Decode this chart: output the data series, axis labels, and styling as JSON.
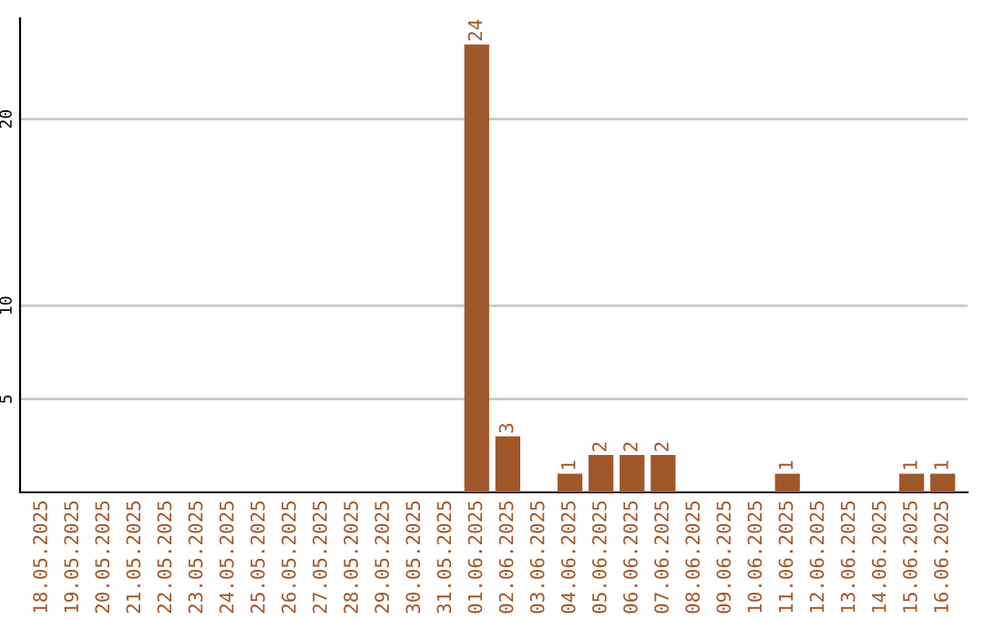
{
  "chart_data": {
    "type": "bar",
    "categories": [
      "18.05.2025",
      "19.05.2025",
      "20.05.2025",
      "21.05.2025",
      "22.05.2025",
      "23.05.2025",
      "24.05.2025",
      "25.05.2025",
      "26.05.2025",
      "27.05.2025",
      "28.05.2025",
      "29.05.2025",
      "30.05.2025",
      "31.05.2025",
      "01.06.2025",
      "02.06.2025",
      "03.06.2025",
      "04.06.2025",
      "05.06.2025",
      "06.06.2025",
      "07.06.2025",
      "08.06.2025",
      "09.06.2025",
      "10.06.2025",
      "11.06.2025",
      "12.06.2025",
      "13.06.2025",
      "14.06.2025",
      "15.06.2025",
      "16.06.2025"
    ],
    "values": [
      0,
      0,
      0,
      0,
      0,
      0,
      0,
      0,
      0,
      0,
      0,
      0,
      0,
      0,
      24,
      3,
      0,
      1,
      2,
      2,
      2,
      0,
      0,
      0,
      1,
      0,
      0,
      0,
      1,
      1
    ],
    "value_labels": [
      null,
      null,
      null,
      null,
      null,
      null,
      null,
      null,
      null,
      null,
      null,
      null,
      null,
      null,
      "24",
      "3",
      null,
      "1",
      "2",
      "2",
      "2",
      null,
      null,
      null,
      "1",
      null,
      null,
      null,
      "1",
      "1"
    ],
    "color": "#a0582a",
    "ylim": [
      0,
      25.4
    ],
    "yticks": [
      5,
      10,
      20
    ],
    "grid": "y"
  }
}
